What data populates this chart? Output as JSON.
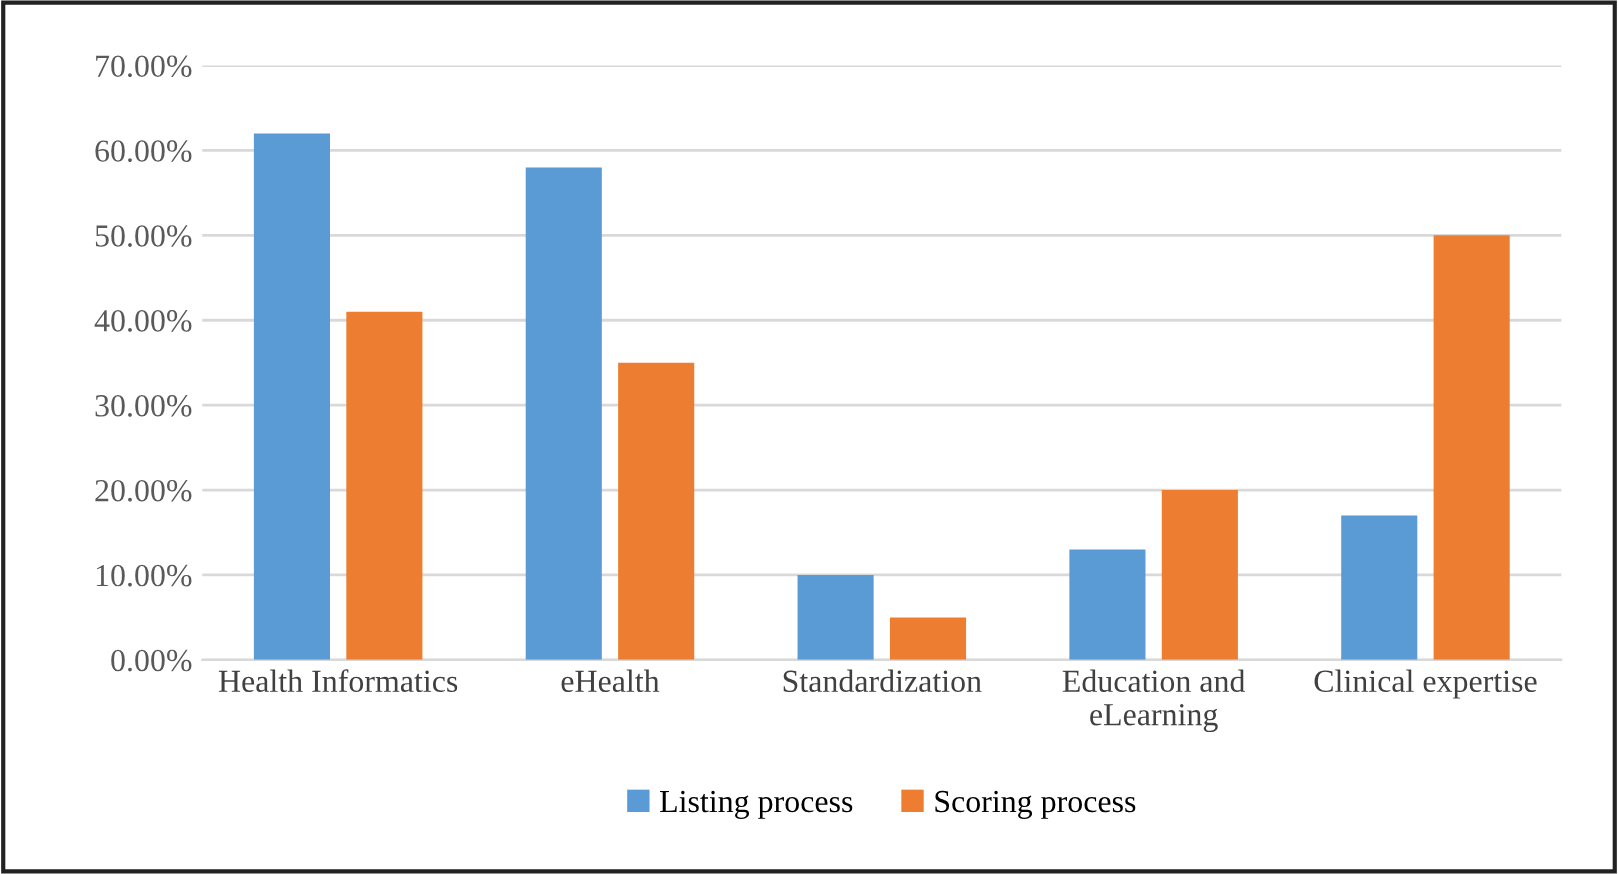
{
  "chart_data": {
    "type": "bar",
    "categories": [
      "Health Informatics",
      "eHealth",
      "Standardization",
      "Education and\neLearning",
      "Clinical expertise"
    ],
    "series": [
      {
        "name": "Listing process",
        "color": "#5b9bd5",
        "values": [
          62,
          58,
          10,
          13,
          17
        ]
      },
      {
        "name": "Scoring process",
        "color": "#ed7d31",
        "values": [
          41,
          35,
          5,
          20,
          50
        ]
      }
    ],
    "ylim": [
      0,
      70
    ],
    "yticks": [
      {
        "value": 0,
        "label": "0.00%"
      },
      {
        "value": 10,
        "label": "10.00%"
      },
      {
        "value": 20,
        "label": "20.00%"
      },
      {
        "value": 30,
        "label": "30.00%"
      },
      {
        "value": 40,
        "label": "40.00%"
      },
      {
        "value": 50,
        "label": "50.00%"
      },
      {
        "value": 60,
        "label": "60.00%"
      },
      {
        "value": 70,
        "label": "70.00%"
      }
    ],
    "grid": "y",
    "legend": "bottom"
  }
}
